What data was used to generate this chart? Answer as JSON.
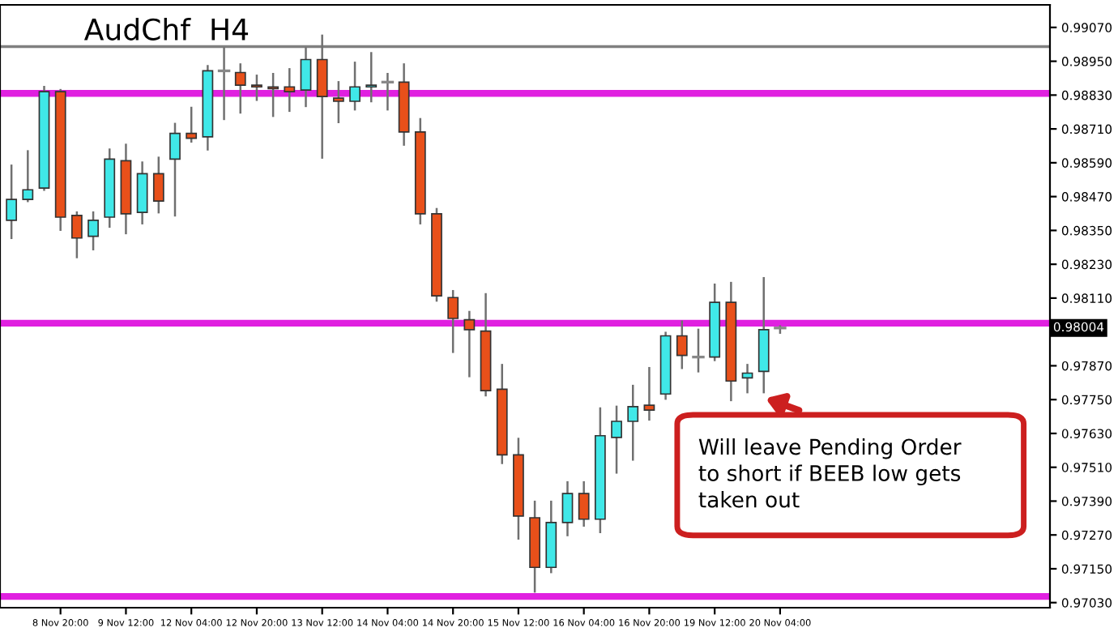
{
  "chart_data": {
    "type": "candlestick",
    "title": "AudChf  H4",
    "categories": [
      null,
      null,
      null,
      "8 Nov 20:00",
      null,
      null,
      null,
      "9 Nov 12:00",
      null,
      null,
      null,
      "12 Nov 04:00",
      null,
      null,
      null,
      "12 Nov 20:00",
      null,
      null,
      null,
      "13 Nov 12:00",
      null,
      null,
      null,
      "14 Nov 04:00",
      null,
      null,
      null,
      "14 Nov 20:00",
      null,
      null,
      null,
      "15 Nov 12:00",
      null,
      null,
      null,
      "16 Nov 04:00",
      null,
      null,
      null,
      "16 Nov 20:00",
      null,
      null,
      null,
      "19 Nov 12:00",
      null,
      null,
      null,
      "20 Nov 04:00",
      null,
      null,
      null,
      null,
      null,
      null,
      null,
      null,
      null,
      null,
      null,
      null,
      null,
      null,
      null,
      null
    ],
    "ohlc": [
      [
        0.98386,
        0.9858,
        0.98323,
        0.9846
      ],
      [
        0.9846,
        0.98631,
        0.98454,
        0.98494
      ],
      [
        0.985,
        0.98859,
        0.98494,
        0.98842
      ],
      [
        0.98842,
        0.98848,
        0.98352,
        0.98397
      ],
      [
        0.98403,
        0.98414,
        0.98255,
        0.98323
      ],
      [
        0.98329,
        0.98414,
        0.98283,
        0.98386
      ],
      [
        0.98397,
        0.98637,
        0.98363,
        0.98603
      ],
      [
        0.98597,
        0.98654,
        0.9834,
        0.98409
      ],
      [
        0.98414,
        0.98591,
        0.98375,
        0.98551
      ],
      [
        0.98551,
        0.98608,
        0.98414,
        0.98454
      ],
      [
        0.98603,
        0.98728,
        0.98403,
        0.98694
      ],
      [
        0.98694,
        0.98785,
        0.98665,
        0.98677
      ],
      [
        0.98682,
        0.98933,
        0.98637,
        0.98916
      ],
      [
        0.98916,
        0.98996,
        0.98745,
        0.98916
      ],
      [
        0.9891,
        0.98939,
        0.98768,
        0.98865
      ],
      [
        0.98865,
        0.98899,
        0.98813,
        0.98859
      ],
      [
        0.98859,
        0.98905,
        0.98756,
        0.98853
      ],
      [
        0.98859,
        0.98922,
        0.98774,
        0.98842
      ],
      [
        0.98848,
        0.98996,
        0.98791,
        0.98956
      ],
      [
        0.98956,
        0.99041,
        0.98608,
        0.98825
      ],
      [
        0.98819,
        0.98876,
        0.98734,
        0.98808
      ],
      [
        0.98808,
        0.98945,
        0.98779,
        0.98859
      ],
      [
        0.98859,
        0.98979,
        0.98808,
        0.98865
      ],
      [
        0.98876,
        0.98905,
        0.98779,
        0.98876
      ],
      [
        0.98876,
        0.98939,
        0.98654,
        0.98699
      ],
      [
        0.98699,
        0.98745,
        0.98375,
        0.98409
      ],
      [
        0.98409,
        0.98426,
        0.98101,
        0.98118
      ],
      [
        0.98112,
        0.98135,
        0.97919,
        0.98038
      ],
      [
        0.98033,
        0.98061,
        0.97833,
        0.97998
      ],
      [
        0.97993,
        0.98124,
        0.97765,
        0.97782
      ],
      [
        0.97787,
        0.97873,
        0.97525,
        0.97554
      ],
      [
        0.97554,
        0.97611,
        0.97257,
        0.97337
      ],
      [
        0.97331,
        0.97388,
        0.97069,
        0.97155
      ],
      [
        0.97155,
        0.97388,
        0.97138,
        0.97314
      ],
      [
        0.97314,
        0.97457,
        0.97269,
        0.97417
      ],
      [
        0.97417,
        0.97457,
        0.97303,
        0.97326
      ],
      [
        0.97326,
        0.97719,
        0.9728,
        0.97622
      ],
      [
        0.97616,
        0.97725,
        0.97491,
        0.97673
      ],
      [
        0.97673,
        0.97799,
        0.97537,
        0.97725
      ],
      [
        0.9773,
        0.97862,
        0.97679,
        0.97713
      ],
      [
        0.9777,
        0.97987,
        0.97753,
        0.97976
      ],
      [
        0.97976,
        0.98027,
        0.97862,
        0.97907
      ],
      [
        0.97901,
        0.97998,
        0.9785,
        0.97901
      ],
      [
        0.97901,
        0.98158,
        0.9789,
        0.98095
      ],
      [
        0.98095,
        0.98164,
        0.97748,
        0.97816
      ],
      [
        0.97827,
        0.97873,
        0.97776,
        0.97844
      ],
      [
        0.9785,
        0.98181,
        0.97776,
        0.97998
      ],
      [
        0.98004,
        0.9801,
        0.97987,
        0.98004
      ],
      null,
      null,
      null,
      null,
      null,
      null,
      null,
      null,
      null,
      null,
      null,
      null,
      null,
      null,
      null,
      null
    ],
    "colors": [
      "#40e8e8",
      "#40e8e8",
      "#40e8e8",
      "#e8501a",
      "#e8501a",
      "#40e8e8",
      "#40e8e8",
      "#e8501a",
      "#40e8e8",
      "#e8501a",
      "#40e8e8",
      "#e8501a",
      "#40e8e8",
      "#888888",
      "#e8501a",
      "#e8501a",
      "#e8501a",
      "#e8501a",
      "#40e8e8",
      "#e8501a",
      "#e8501a",
      "#40e8e8",
      "#40e8e8",
      "#888888",
      "#e8501a",
      "#e8501a",
      "#e8501a",
      "#e8501a",
      "#e8501a",
      "#e8501a",
      "#e8501a",
      "#e8501a",
      "#e8501a",
      "#40e8e8",
      "#40e8e8",
      "#e8501a",
      "#40e8e8",
      "#40e8e8",
      "#40e8e8",
      "#e8501a",
      "#40e8e8",
      "#e8501a",
      "#888888",
      "#40e8e8",
      "#e8501a",
      "#40e8e8",
      "#40e8e8",
      "#888888",
      null,
      null,
      null,
      null,
      null,
      null,
      null,
      null,
      null,
      null,
      null,
      null,
      null,
      null,
      null,
      null
    ],
    "ylim": [
      0.97012,
      0.9915
    ],
    "yticks": [
      {
        "value": 0.9703,
        "label": "0.97030"
      },
      {
        "value": 0.9715,
        "label": "0.97150"
      },
      {
        "value": 0.9727,
        "label": "0.97270"
      },
      {
        "value": 0.9739,
        "label": "0.97390"
      },
      {
        "value": 0.9751,
        "label": "0.97510"
      },
      {
        "value": 0.9763,
        "label": "0.97630"
      },
      {
        "value": 0.9775,
        "label": "0.97750"
      },
      {
        "value": 0.9787,
        "label": "0.97870"
      },
      {
        "value": 0.9811,
        "label": "0.98110"
      },
      {
        "value": 0.9823,
        "label": "0.98230"
      },
      {
        "value": 0.9835,
        "label": "0.98350"
      },
      {
        "value": 0.9847,
        "label": "0.98470"
      },
      {
        "value": 0.9859,
        "label": "0.98590"
      },
      {
        "value": 0.9871,
        "label": "0.98710"
      },
      {
        "value": 0.9883,
        "label": "0.98830"
      },
      {
        "value": 0.9895,
        "label": "0.98950"
      },
      {
        "value": 0.9907,
        "label": "0.99070"
      }
    ],
    "ref_lines": [
      {
        "axis": "y",
        "value": 0.98836,
        "color": "#e020e0"
      },
      {
        "axis": "y",
        "value": 0.98021,
        "color": "#e020e0"
      },
      {
        "axis": "y",
        "value": 0.97052,
        "color": "#e020e0"
      },
      {
        "axis": "y",
        "value": 0.99002,
        "color": "#808080"
      }
    ],
    "annotations": [
      "0.98004",
      "Will leave Pending Order\nto short if BEEB low gets\ntaken out"
    ],
    "grid": false
  }
}
